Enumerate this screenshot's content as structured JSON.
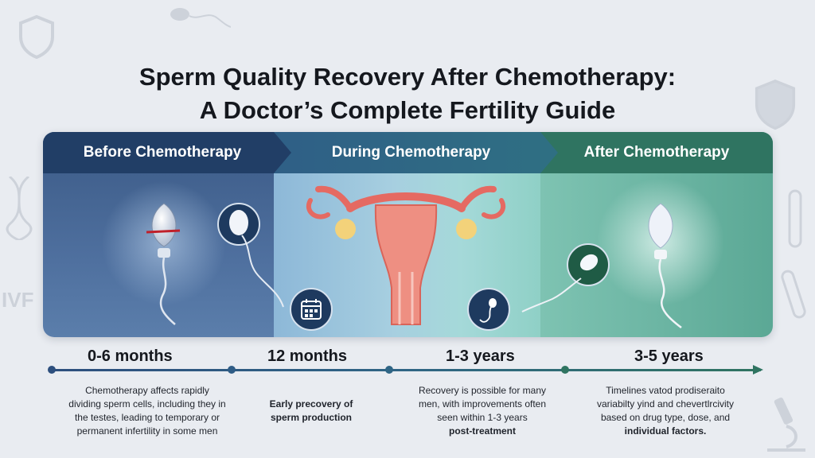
{
  "title": {
    "line1": "Sperm Quality Recovery After Chemotherapy:",
    "line2": "A Doctor’s Complete Fertility Guide"
  },
  "background": {
    "ivf_label": "IVF"
  },
  "phases": [
    {
      "label": "Before Chemotherapy",
      "color": "#213e66"
    },
    {
      "label": "During Chemotherapy",
      "color": "#2f6585"
    },
    {
      "label": "After Chemotherapy",
      "color": "#2f7461"
    }
  ],
  "timeline": {
    "milestones": [
      "0-6 months",
      "12 months",
      "1-3 years",
      "3-5 years"
    ],
    "descriptions": [
      [
        "Chemotherapy affects rapidly",
        "dividing sperm cells, including they in",
        "the testes, leading to temporary or",
        "permanent infertility in some men"
      ],
      [
        "Early precovery of",
        "sperm production"
      ],
      [
        "Recovery is possible for many",
        "men, with improvements often",
        "seen within 1-3 years",
        "post-treatment"
      ],
      [
        "Timelines vatod prodiseraito",
        "variabilty yind and chevertlrcivity",
        "based on drug type, dose, and",
        "individual factors."
      ]
    ]
  },
  "icons": {
    "calendar": "calendar-icon",
    "sperm": "sperm-icon",
    "uterus": "uterus-illustration",
    "dna": "dna-icon",
    "shield": "shield-icon",
    "microscope": "microscope-icon",
    "test_tube": "test-tube-icon"
  }
}
